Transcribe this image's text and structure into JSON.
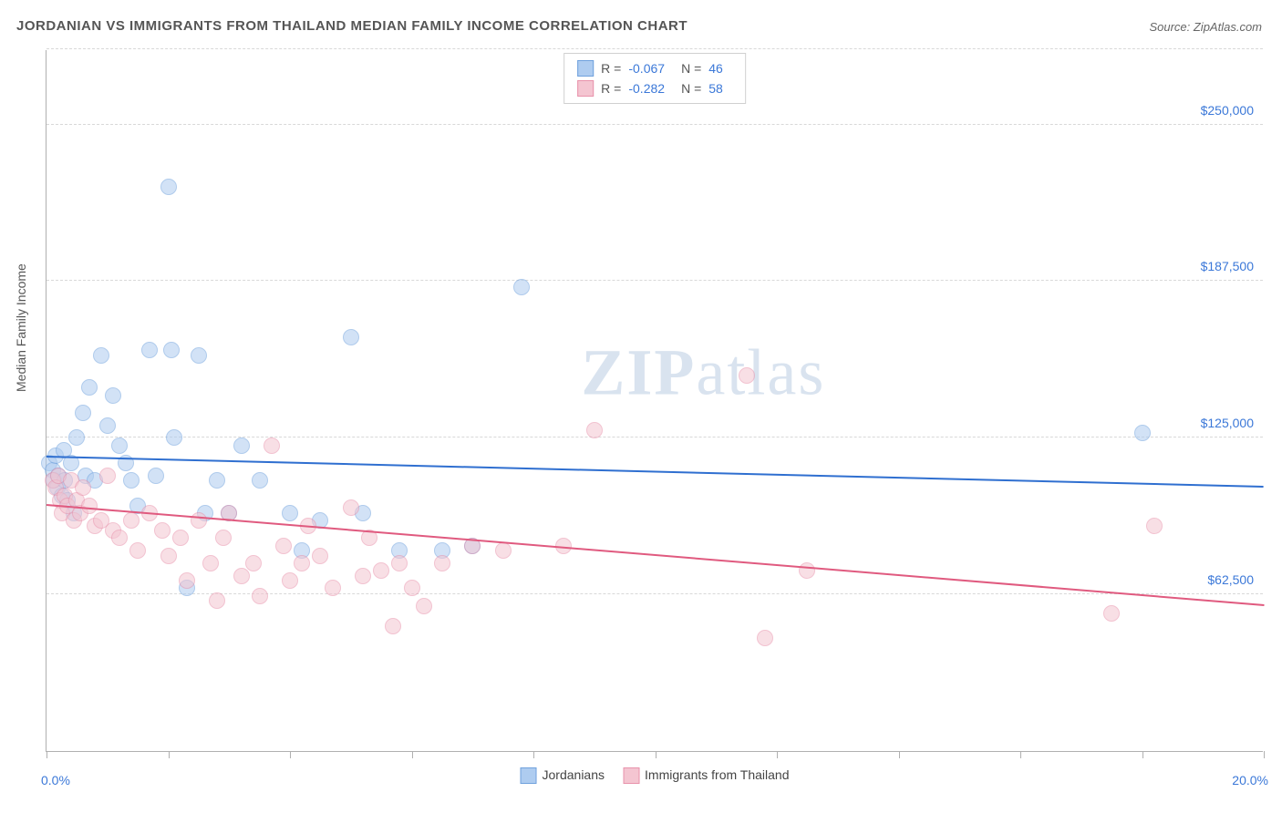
{
  "title": "JORDANIAN VS IMMIGRANTS FROM THAILAND MEDIAN FAMILY INCOME CORRELATION CHART",
  "source_label": "Source: ZipAtlas.com",
  "ylabel": "Median Family Income",
  "watermark": {
    "bold": "ZIP",
    "rest": "atlas"
  },
  "chart": {
    "type": "scatter",
    "background_color": "#ffffff",
    "grid_color": "#d8d8d8",
    "axis_color": "#b0b0b0",
    "xlim": [
      0,
      20
    ],
    "ylim": [
      0,
      280000
    ],
    "x_tick_positions": [
      0,
      2,
      4,
      6,
      8,
      10,
      12,
      14,
      16,
      18,
      20
    ],
    "x_tick_labels": {
      "0": "0.0%",
      "20": "20.0%"
    },
    "y_gridlines": [
      62500,
      125000,
      187500,
      250000,
      280000
    ],
    "y_tick_labels": {
      "62500": "$62,500",
      "125000": "$125,000",
      "187500": "$187,500",
      "250000": "$250,000"
    },
    "tick_label_color": "#3b78d8",
    "label_color": "#555555",
    "marker_radius": 9,
    "marker_opacity": 0.55,
    "trend_line_width": 2
  },
  "series": [
    {
      "name": "Jordanians",
      "marker_fill": "#aeccf0",
      "marker_stroke": "#6fa1dd",
      "line_color": "#2f6fd0",
      "R": "-0.067",
      "N": "46",
      "trend": {
        "x1": 0,
        "y1": 117000,
        "x2": 20,
        "y2": 105000
      },
      "points": [
        [
          0.05,
          115000
        ],
        [
          0.1,
          112000
        ],
        [
          0.12,
          108000
        ],
        [
          0.15,
          118000
        ],
        [
          0.18,
          105000
        ],
        [
          0.2,
          110000
        ],
        [
          0.25,
          102000
        ],
        [
          0.28,
          120000
        ],
        [
          0.3,
          108000
        ],
        [
          0.35,
          100000
        ],
        [
          0.4,
          115000
        ],
        [
          0.45,
          95000
        ],
        [
          0.5,
          125000
        ],
        [
          0.6,
          135000
        ],
        [
          0.65,
          110000
        ],
        [
          0.7,
          145000
        ],
        [
          0.8,
          108000
        ],
        [
          0.9,
          158000
        ],
        [
          1.0,
          130000
        ],
        [
          1.1,
          142000
        ],
        [
          1.2,
          122000
        ],
        [
          1.3,
          115000
        ],
        [
          1.4,
          108000
        ],
        [
          1.5,
          98000
        ],
        [
          1.7,
          160000
        ],
        [
          1.8,
          110000
        ],
        [
          2.0,
          225000
        ],
        [
          2.05,
          160000
        ],
        [
          2.1,
          125000
        ],
        [
          2.3,
          65000
        ],
        [
          2.5,
          158000
        ],
        [
          2.6,
          95000
        ],
        [
          2.8,
          108000
        ],
        [
          3.0,
          95000
        ],
        [
          3.2,
          122000
        ],
        [
          3.5,
          108000
        ],
        [
          4.0,
          95000
        ],
        [
          4.2,
          80000
        ],
        [
          4.5,
          92000
        ],
        [
          5.0,
          165000
        ],
        [
          5.2,
          95000
        ],
        [
          5.8,
          80000
        ],
        [
          6.5,
          80000
        ],
        [
          7.0,
          82000
        ],
        [
          7.8,
          185000
        ],
        [
          18.0,
          127000
        ]
      ]
    },
    {
      "name": "Immigrants from Thailand",
      "marker_fill": "#f4c5d1",
      "marker_stroke": "#e892ab",
      "line_color": "#e05a7f",
      "R": "-0.282",
      "N": "58",
      "trend": {
        "x1": 0,
        "y1": 98000,
        "x2": 20,
        "y2": 58000
      },
      "points": [
        [
          0.1,
          108000
        ],
        [
          0.15,
          105000
        ],
        [
          0.2,
          110000
        ],
        [
          0.22,
          100000
        ],
        [
          0.25,
          95000
        ],
        [
          0.3,
          102000
        ],
        [
          0.35,
          98000
        ],
        [
          0.4,
          108000
        ],
        [
          0.45,
          92000
        ],
        [
          0.5,
          100000
        ],
        [
          0.55,
          95000
        ],
        [
          0.6,
          105000
        ],
        [
          0.7,
          98000
        ],
        [
          0.8,
          90000
        ],
        [
          0.9,
          92000
        ],
        [
          1.0,
          110000
        ],
        [
          1.1,
          88000
        ],
        [
          1.2,
          85000
        ],
        [
          1.4,
          92000
        ],
        [
          1.5,
          80000
        ],
        [
          1.7,
          95000
        ],
        [
          1.9,
          88000
        ],
        [
          2.0,
          78000
        ],
        [
          2.2,
          85000
        ],
        [
          2.3,
          68000
        ],
        [
          2.5,
          92000
        ],
        [
          2.7,
          75000
        ],
        [
          2.8,
          60000
        ],
        [
          2.9,
          85000
        ],
        [
          3.0,
          95000
        ],
        [
          3.2,
          70000
        ],
        [
          3.4,
          75000
        ],
        [
          3.5,
          62000
        ],
        [
          3.7,
          122000
        ],
        [
          3.9,
          82000
        ],
        [
          4.0,
          68000
        ],
        [
          4.2,
          75000
        ],
        [
          4.3,
          90000
        ],
        [
          4.5,
          78000
        ],
        [
          4.7,
          65000
        ],
        [
          5.0,
          97000
        ],
        [
          5.2,
          70000
        ],
        [
          5.3,
          85000
        ],
        [
          5.5,
          72000
        ],
        [
          5.7,
          50000
        ],
        [
          5.8,
          75000
        ],
        [
          6.0,
          65000
        ],
        [
          6.2,
          58000
        ],
        [
          6.5,
          75000
        ],
        [
          7.0,
          82000
        ],
        [
          7.5,
          80000
        ],
        [
          8.5,
          82000
        ],
        [
          9.0,
          128000
        ],
        [
          11.5,
          150000
        ],
        [
          11.8,
          45000
        ],
        [
          12.5,
          72000
        ],
        [
          17.5,
          55000
        ],
        [
          18.2,
          90000
        ]
      ]
    }
  ],
  "legend_bottom": [
    {
      "label": "Jordanians",
      "fill": "#aeccf0",
      "stroke": "#6fa1dd"
    },
    {
      "label": "Immigrants from Thailand",
      "fill": "#f4c5d1",
      "stroke": "#e892ab"
    }
  ]
}
